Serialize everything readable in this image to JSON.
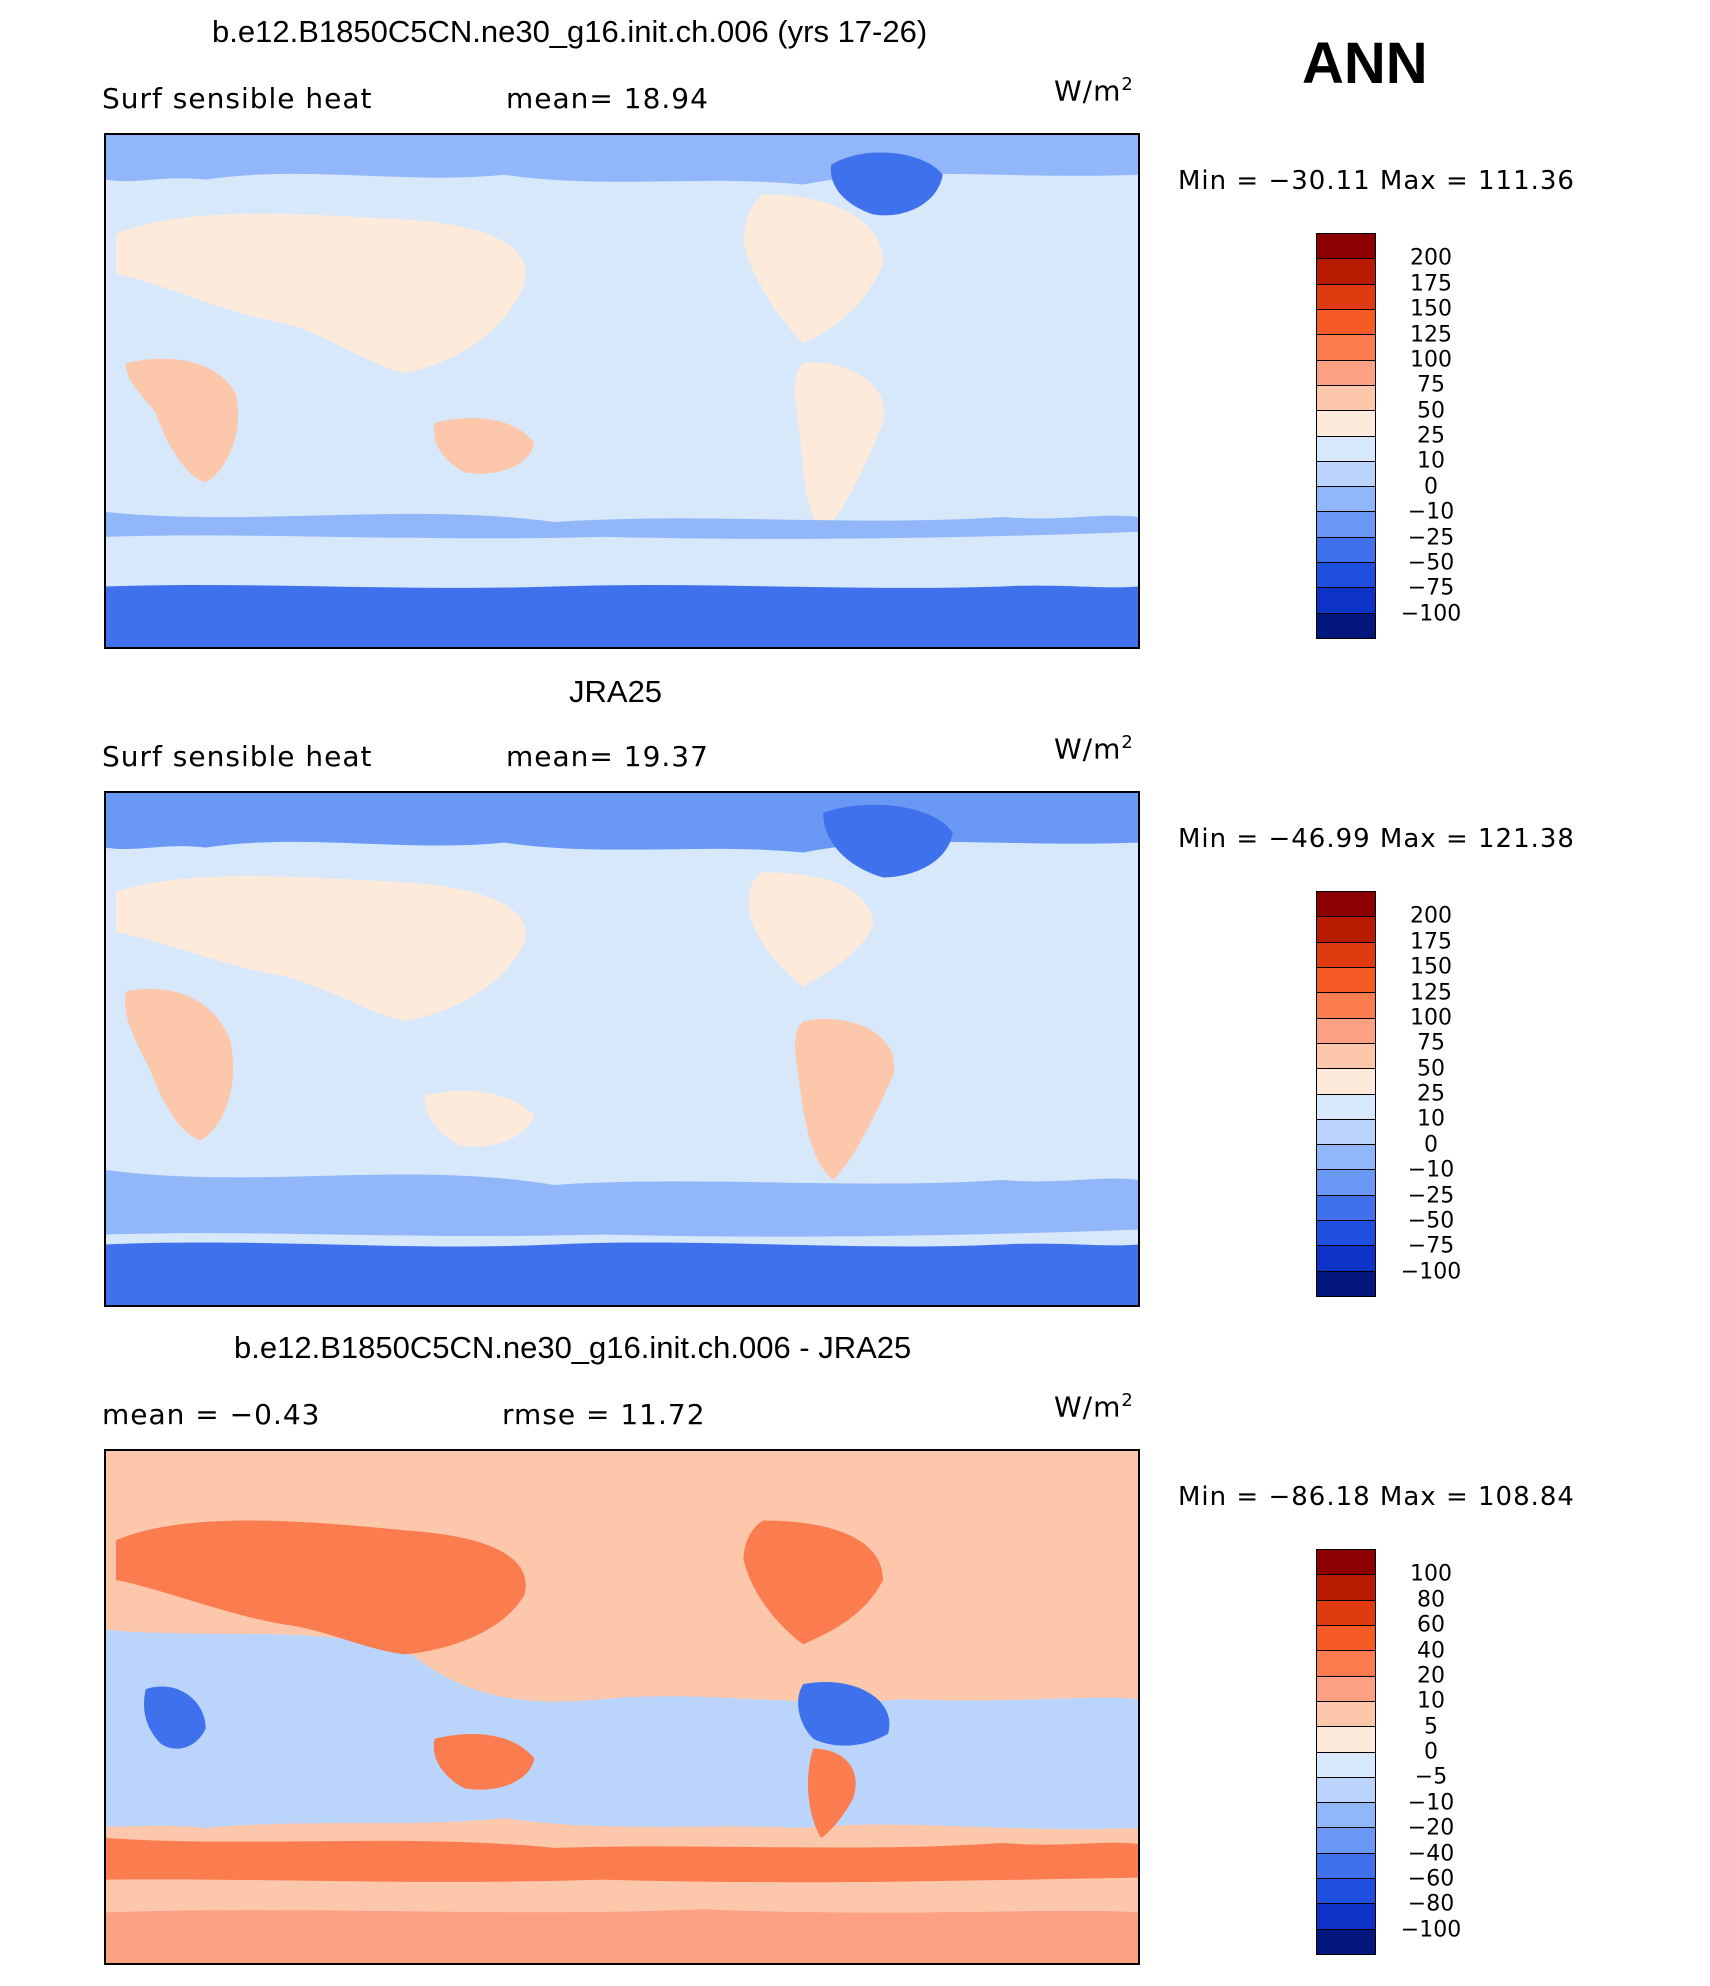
{
  "season": "ANN",
  "panels": [
    {
      "title": "b.e12.B1850C5CN.ne30_g16.init.ch.006 (yrs 17-26)",
      "left_label": "Surf  sensible  heat",
      "right_label": "mean=   18.94",
      "units": "W/m",
      "units_exp": "2",
      "minmax": "Min  =  −30.11  Max  =  111.36",
      "colorbar": {
        "labels": [
          "200",
          "175",
          "150",
          "125",
          "100",
          "75",
          "50",
          "25",
          "10",
          "0",
          "−10",
          "−25",
          "−50",
          "−75",
          "−100"
        ],
        "colors": [
          "#8b0000",
          "#b71c00",
          "#e03a10",
          "#f65a25",
          "#fb7c4f",
          "#fca183",
          "#fdc7ab",
          "#feeadb",
          "#d8e8fb",
          "#bbd4fb",
          "#92b6fa",
          "#6a98f5",
          "#3f71ec",
          "#1f4fe0",
          "#0c33c6",
          "#02167d"
        ]
      }
    },
    {
      "title": "JRA25",
      "left_label": "Surf  sensible  heat",
      "right_label": "mean=   19.37",
      "units": "W/m",
      "units_exp": "2",
      "minmax": "Min  =  −46.99  Max  =  121.38",
      "colorbar": {
        "labels": [
          "200",
          "175",
          "150",
          "125",
          "100",
          "75",
          "50",
          "25",
          "10",
          "0",
          "−10",
          "−25",
          "−50",
          "−75",
          "−100"
        ],
        "colors": [
          "#8b0000",
          "#b71c00",
          "#e03a10",
          "#f65a25",
          "#fb7c4f",
          "#fca183",
          "#fdc7ab",
          "#feeadb",
          "#d8e8fb",
          "#bbd4fb",
          "#92b6fa",
          "#6a98f5",
          "#3f71ec",
          "#1f4fe0",
          "#0c33c6",
          "#02167d"
        ]
      }
    },
    {
      "title": "b.e12.B1850C5CN.ne30_g16.init.ch.006 - JRA25",
      "left_label": "mean  =    −0.43",
      "right_label": "rmse  =    11.72",
      "units": "W/m",
      "units_exp": "2",
      "minmax": "Min  =  −86.18  Max  =  108.84",
      "colorbar": {
        "labels": [
          "100",
          "80",
          "60",
          "40",
          "20",
          "10",
          "5",
          "0",
          "−5",
          "−10",
          "−20",
          "−40",
          "−60",
          "−80",
          "−100"
        ],
        "colors": [
          "#8b0000",
          "#b71c00",
          "#e03a10",
          "#f65a25",
          "#fb7c4f",
          "#fca183",
          "#fdc7ab",
          "#feeadb",
          "#d8e8fb",
          "#bbd4fb",
          "#92b6fa",
          "#6a98f5",
          "#3f71ec",
          "#1f4fe0",
          "#0c33c6",
          "#02167d"
        ]
      }
    }
  ]
}
